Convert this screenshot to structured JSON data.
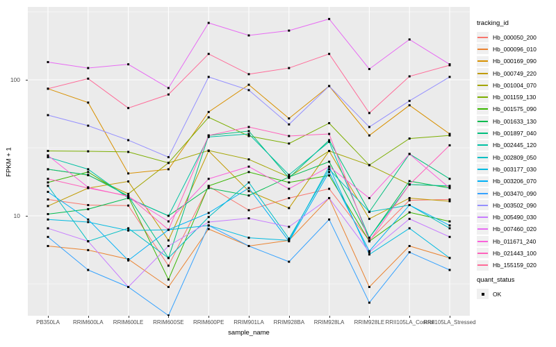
{
  "colors": {
    "panel_bg": "#EBEBEB",
    "grid_major": "#FFFFFF",
    "grid_minor": "#FFFFFF",
    "point": "#000000",
    "tick_label": "#4D4D4D",
    "legend_key_bg": "#F0F0F0"
  },
  "chart_data": {
    "type": "line",
    "title": "",
    "xlabel": "sample_name",
    "ylabel": "FPKM + 1",
    "y_scale": "log10",
    "ylim": [
      1.83,
      343
    ],
    "y_major_ticks": [
      100,
      10
    ],
    "y_minor_gridlines": [
      316.23,
      31.623,
      3.1623
    ],
    "grid": "on",
    "legend_position": "right",
    "categories": [
      "PB350LA",
      "RRIM600LA",
      "RRIM600LE",
      "RRIM600SE",
      "RRIM600PE",
      "RRIM901LA",
      "RRIM928BA",
      "RRIM928LA",
      "RRIM928LE",
      "RRII105LA_Control",
      "RRII105LA_Stressed"
    ],
    "legend_title": "tracking_id",
    "series": [
      {
        "name": "Hb_000050_200",
        "color": "#F8766D",
        "values": [
          13.2,
          12.0,
          11.9,
          4.3,
          16.5,
          11.0,
          13.5,
          15.8,
          6.6,
          13.0,
          13.2
        ]
      },
      {
        "name": "Hb_000096_010",
        "color": "#EA8331",
        "values": [
          6.0,
          5.6,
          4.8,
          3.0,
          8.0,
          6.0,
          6.6,
          13.5,
          3.0,
          6.0,
          4.9
        ]
      },
      {
        "name": "Hb_000169_090",
        "color": "#D89000",
        "values": [
          86,
          68,
          20.5,
          22,
          58,
          92,
          52,
          90,
          39,
          65,
          40
        ]
      },
      {
        "name": "Hb_000749_220",
        "color": "#C09B00",
        "values": [
          11.8,
          16.0,
          17.9,
          6.6,
          30,
          15.2,
          11.4,
          30,
          9.5,
          13.5,
          12.8
        ]
      },
      {
        "name": "Hb_001004_070",
        "color": "#A3A500",
        "values": [
          22,
          19.9,
          14.5,
          24.5,
          30.2,
          26,
          19.3,
          30,
          23.6,
          17,
          16.5
        ]
      },
      {
        "name": "Hb_001159_130",
        "color": "#7CAE00",
        "values": [
          30,
          29.8,
          29.5,
          24.5,
          53,
          38.6,
          34,
          48,
          23.6,
          37,
          39
        ]
      },
      {
        "name": "Hb_001575_090",
        "color": "#39B600",
        "values": [
          17.6,
          21,
          13.8,
          3.4,
          16.6,
          21,
          17.6,
          19.8,
          6.5,
          10.6,
          9.1
        ]
      },
      {
        "name": "Hb_001633_130",
        "color": "#00BB4E",
        "values": [
          10.3,
          11.2,
          13.5,
          10.0,
          16.0,
          14.1,
          19.3,
          25,
          6.9,
          18,
          16
        ]
      },
      {
        "name": "Hb_001897_040",
        "color": "#00BF7D",
        "values": [
          22,
          20,
          14,
          4.9,
          39,
          42,
          19,
          36,
          10.7,
          28.5,
          18.7
        ]
      },
      {
        "name": "Hb_002445_120",
        "color": "#00C1A3",
        "values": [
          27,
          22,
          13.5,
          10,
          38,
          40,
          20,
          35,
          6.9,
          17,
          16.6
        ]
      },
      {
        "name": "Hb_002809_050",
        "color": "#00BFC4",
        "values": [
          16.6,
          6.5,
          8.1,
          4.9,
          9.8,
          17.6,
          6.8,
          22,
          10.7,
          12.0,
          8.1
        ]
      },
      {
        "name": "Hb_003177_030",
        "color": "#00BAE0",
        "values": [
          9.4,
          9.0,
          7.8,
          7.9,
          8.5,
          6.9,
          6.6,
          23,
          5.2,
          8.1,
          4.9
        ]
      },
      {
        "name": "Hb_003206_070",
        "color": "#00B0F6",
        "values": [
          15.0,
          9.4,
          4.7,
          7.9,
          10.5,
          16.0,
          6.5,
          21,
          5.5,
          12.0,
          8.5
        ]
      },
      {
        "name": "Hb_003470_090",
        "color": "#35A2FF",
        "values": [
          7.0,
          4.0,
          3.0,
          1.85,
          8.5,
          6.0,
          4.6,
          9.4,
          2.3,
          5.4,
          4.0
        ]
      },
      {
        "name": "Hb_003502_090",
        "color": "#9590FF",
        "values": [
          55,
          46,
          36,
          27,
          105,
          84,
          47,
          90,
          45,
          70,
          105
        ]
      },
      {
        "name": "Hb_005490_030",
        "color": "#C77CFF",
        "values": [
          8.1,
          6.5,
          3.0,
          6.0,
          9.0,
          9.6,
          8.3,
          13.5,
          5.4,
          9.5,
          7.0
        ]
      },
      {
        "name": "Hb_007460_020",
        "color": "#E76BF3",
        "values": [
          135,
          122,
          130,
          87,
          262,
          212,
          230,
          280,
          120,
          198,
          130
        ]
      },
      {
        "name": "Hb_011671_240",
        "color": "#FA62DB",
        "values": [
          27.8,
          16.2,
          13.9,
          9.1,
          18.7,
          23,
          15.8,
          23,
          13.5,
          28.5,
          16
        ]
      },
      {
        "name": "Hb_021443_100",
        "color": "#FF62BC",
        "values": [
          18.7,
          16,
          14,
          7.9,
          39,
          45,
          38.6,
          40,
          6.5,
          17,
          33
        ]
      },
      {
        "name": "Hb_155159_020",
        "color": "#FF6A98",
        "values": [
          86,
          102,
          62,
          78,
          155,
          110,
          122,
          155,
          57,
          106,
          128
        ]
      }
    ],
    "legend2": {
      "title": "quant_status",
      "items": [
        {
          "label": "OK",
          "marker": "black-square"
        }
      ]
    }
  }
}
